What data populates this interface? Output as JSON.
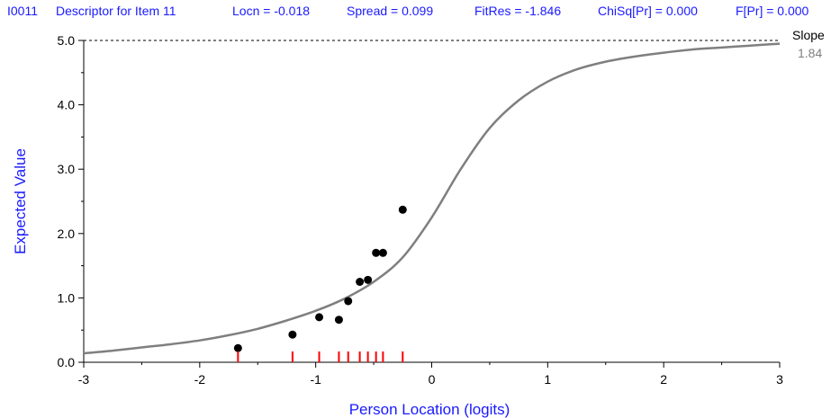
{
  "header": {
    "item_id": "I0011",
    "descriptor": "Descriptor for Item 11",
    "locn": "Locn = -0.018",
    "spread": "Spread = 0.099",
    "fitres": "FitRes = -1.846",
    "chisq": "ChiSq[Pr] = 0.000",
    "fpr": "F[Pr] = 0.000"
  },
  "slope": {
    "label": "Slope",
    "value": "1.84"
  },
  "colors": {
    "header_text": "#1a1aff",
    "axis_title": "#1a1aff",
    "curve": "#7f7f7f",
    "points": "#000000",
    "rug": "#ff0000",
    "slope_value": "#808080"
  },
  "chart_data": {
    "type": "line",
    "title": "",
    "xlabel": "Person Location (logits)",
    "ylabel": "Expected Value",
    "xlim": [
      -3,
      3
    ],
    "ylim": [
      0,
      5
    ],
    "x_ticks": [
      -3,
      -2,
      -1,
      0,
      1,
      2,
      3
    ],
    "x_tick_labels": [
      "-3",
      "-2",
      "-1",
      "0",
      "1",
      "2",
      "3"
    ],
    "y_ticks": [
      0,
      1,
      2,
      3,
      4,
      5
    ],
    "y_tick_labels": [
      "0.0",
      "1.0",
      "2.0",
      "3.0",
      "4.0",
      "5.0"
    ],
    "reference_line": {
      "y": 5.0,
      "style": "dotted"
    },
    "curve": {
      "x": [
        -3.0,
        -2.75,
        -2.5,
        -2.25,
        -2.0,
        -1.75,
        -1.5,
        -1.25,
        -1.0,
        -0.75,
        -0.5,
        -0.25,
        0.0,
        0.25,
        0.5,
        0.75,
        1.0,
        1.25,
        1.5,
        1.75,
        2.0,
        2.25,
        2.5,
        2.75,
        3.0
      ],
      "y": [
        0.14,
        0.18,
        0.23,
        0.28,
        0.34,
        0.42,
        0.52,
        0.65,
        0.8,
        0.99,
        1.25,
        1.63,
        2.25,
        3.0,
        3.64,
        4.07,
        4.36,
        4.55,
        4.67,
        4.75,
        4.81,
        4.86,
        4.89,
        4.92,
        4.95
      ]
    },
    "observed": {
      "x": [
        -1.67,
        -1.2,
        -0.97,
        -0.8,
        -0.72,
        -0.62,
        -0.55,
        -0.48,
        -0.42,
        -0.25
      ],
      "y": [
        0.22,
        0.43,
        0.7,
        0.66,
        0.95,
        1.25,
        1.28,
        1.7,
        1.7,
        2.37
      ]
    },
    "class_intervals": [
      -1.67,
      -1.2,
      -0.97,
      -0.8,
      -0.72,
      -0.62,
      -0.55,
      -0.48,
      -0.42,
      -0.25
    ]
  }
}
